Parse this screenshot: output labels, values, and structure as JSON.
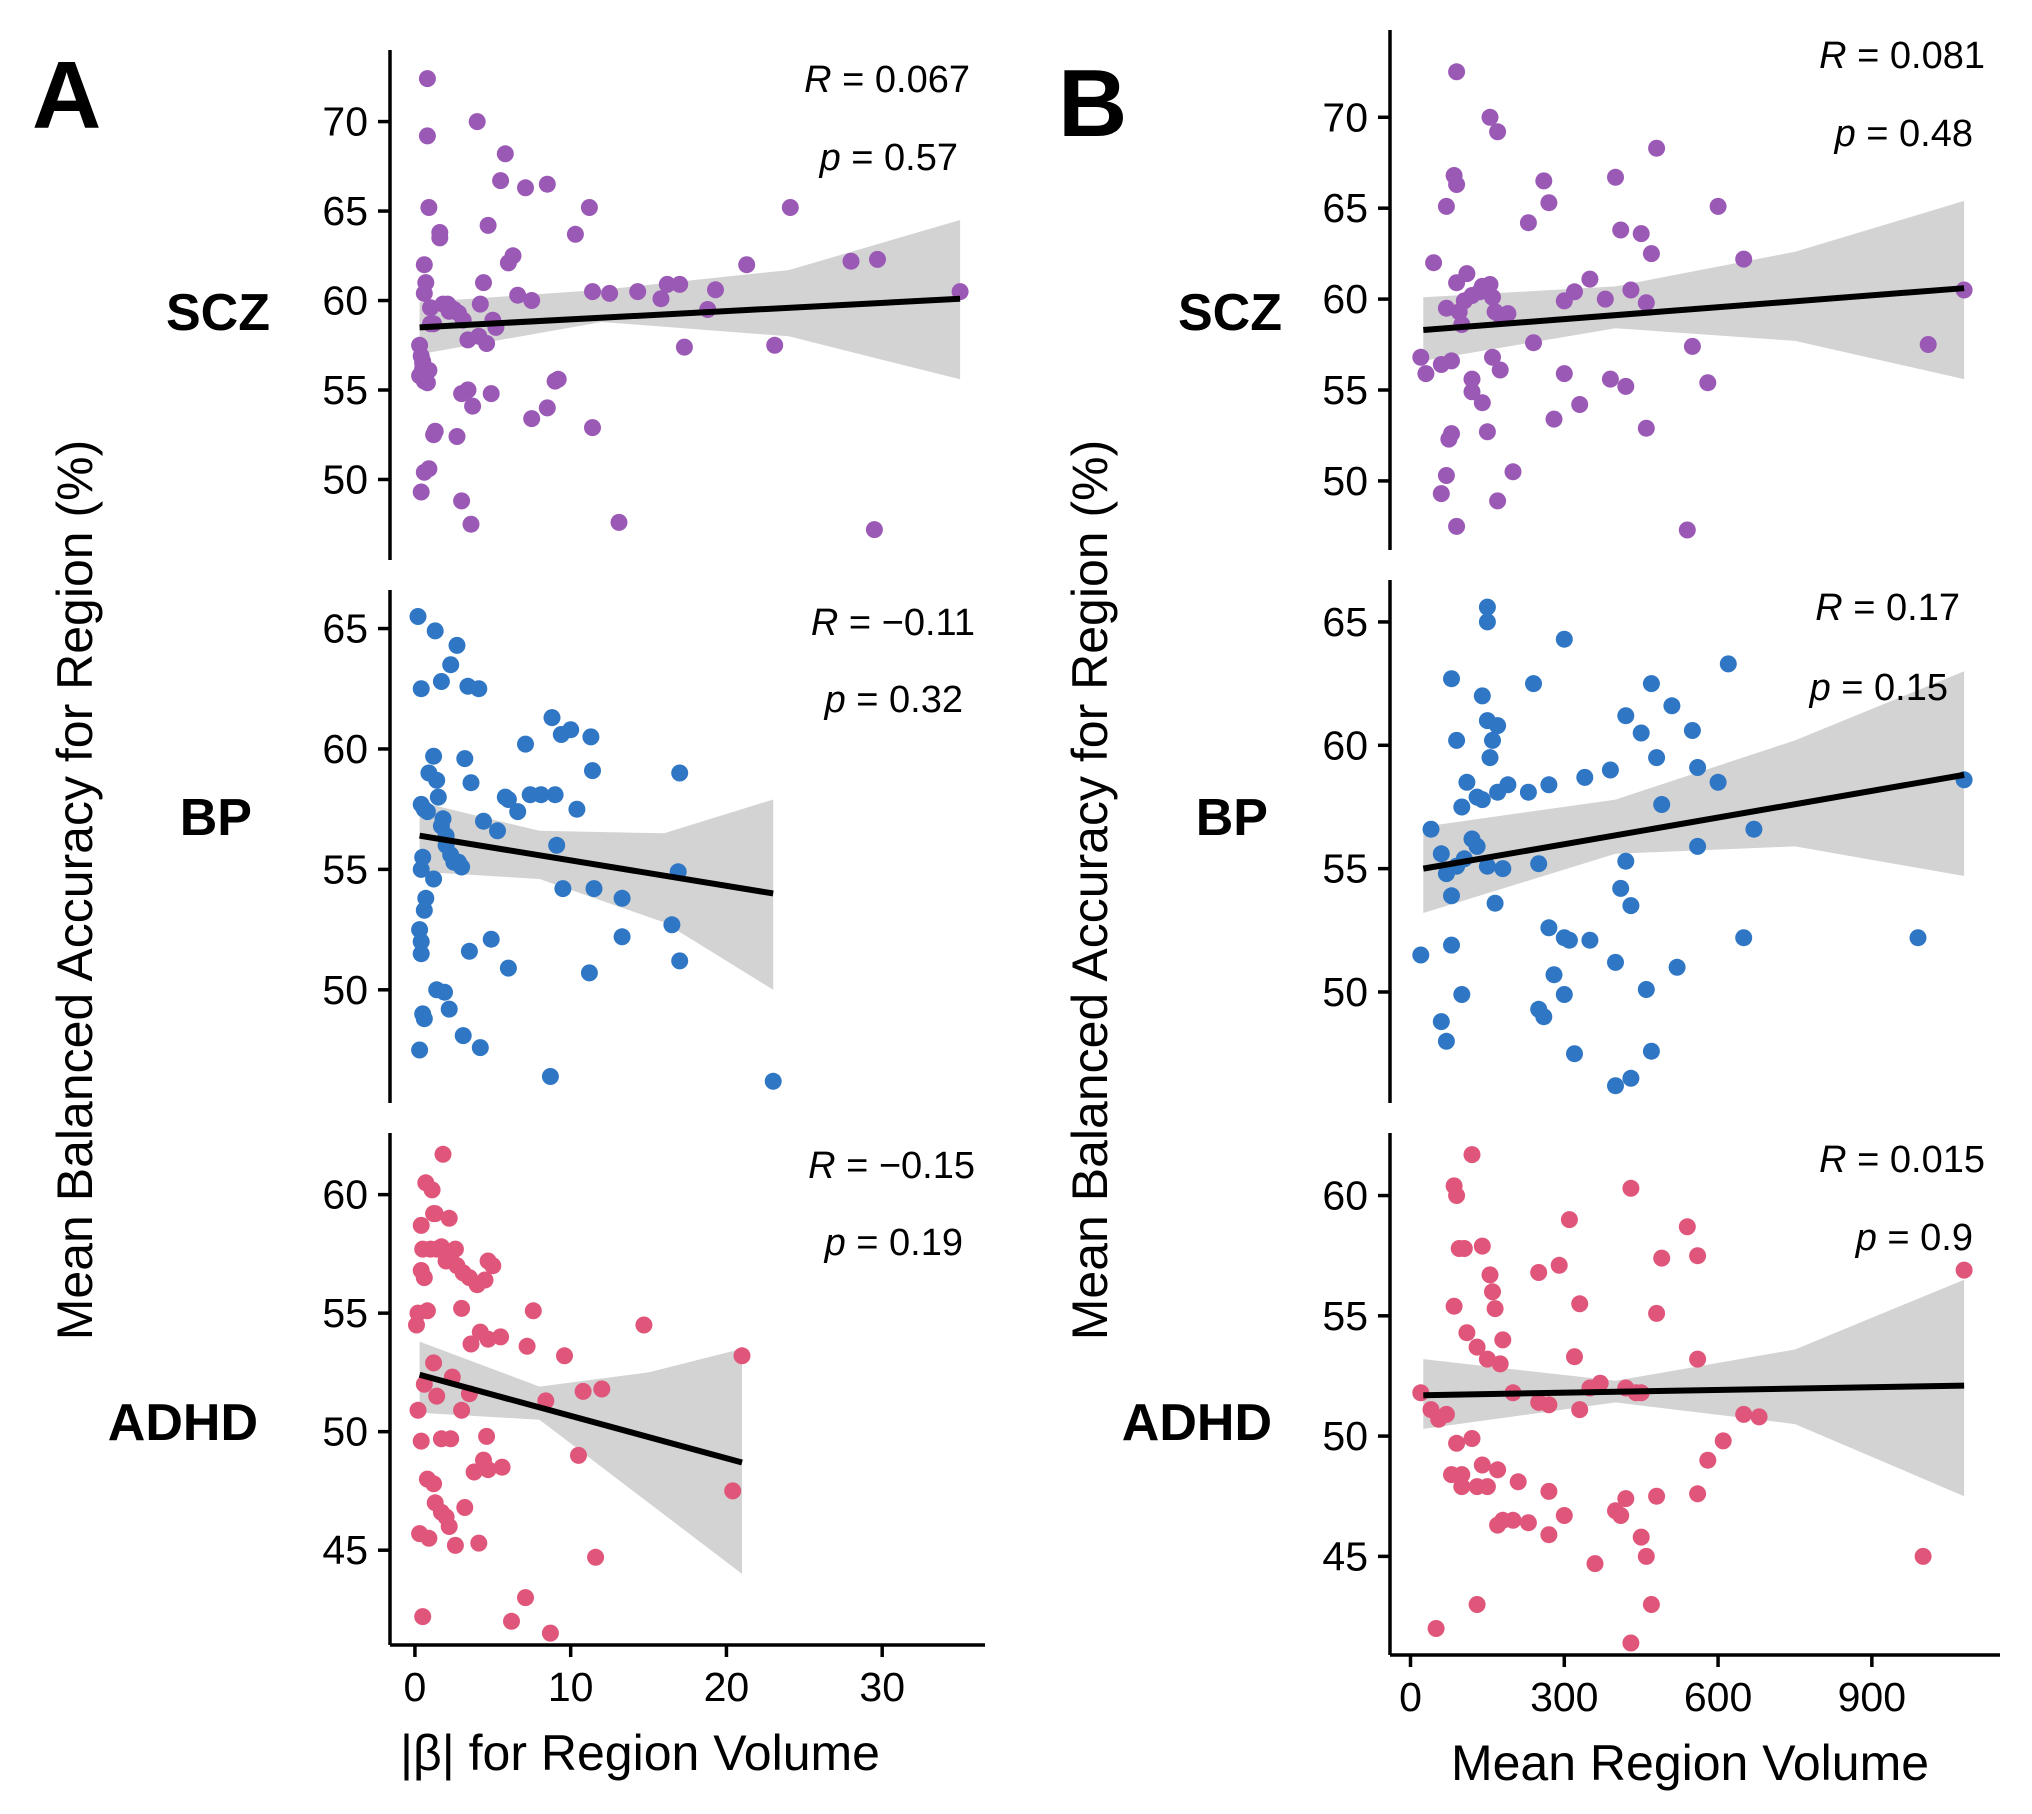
{
  "panels": [
    {
      "letter": "A",
      "ylabel": "Mean Balanced Accuracy for Region (%)",
      "xlabel": "|β| for Region Volume"
    },
    {
      "letter": "B",
      "ylabel": "Mean Balanced Accuracy for Region (%)",
      "xlabel": "Mean Region Volume"
    }
  ],
  "chart_data": [
    {
      "type": "scatter",
      "panel": "A",
      "group": "SCZ",
      "color": "#9b59b6",
      "stat_R": "0.067",
      "stat_p": "0.57",
      "xlim": [
        -1.6,
        36.6
      ],
      "ylim": [
        45.5,
        74
      ],
      "xticks": [
        0,
        10,
        20,
        30
      ],
      "yticks": [
        50,
        55,
        60,
        65,
        70
      ],
      "fit": {
        "x": [
          0.3,
          35
        ],
        "y": [
          58.5,
          60.1
        ]
      },
      "band": {
        "x": [
          0.3,
          12,
          24,
          35
        ],
        "lower": [
          57.0,
          58.8,
          58.0,
          55.6
        ],
        "upper": [
          59.9,
          60.6,
          61.7,
          64.5
        ]
      },
      "x": [
        0.8,
        0.8,
        0.9,
        0.6,
        0.7,
        0.6,
        0.3,
        0.4,
        0.5,
        0.5,
        0.6,
        0.8,
        1.0,
        1.2,
        1.6,
        1.6,
        2.1,
        2.3,
        2.5,
        2.8,
        3.1,
        3.4,
        3.7,
        4.0,
        4.4,
        4.7,
        5.0,
        5.5,
        5.8,
        6.3,
        7.1,
        7.5,
        8.5,
        9.0,
        10.3,
        11.2,
        11.4,
        12.5,
        14.3,
        15.8,
        16.2,
        17.0,
        17.3,
        18.8,
        19.3,
        21.3,
        23.1,
        24.1,
        28.0,
        29.5,
        29.7,
        35.0,
        0.6,
        0.9,
        1.2,
        1.8,
        2.2,
        3.0,
        3.4,
        3.6,
        4.1,
        4.6,
        4.9,
        5.2,
        6.0,
        6.6,
        7.5,
        8.5,
        9.2,
        11.4,
        13.1,
        0.4,
        0.3,
        0.6,
        0.9,
        1.3,
        2.7,
        3.0,
        3.4,
        4.2,
        0.5,
        1.0
      ],
      "y": [
        72.4,
        69.2,
        65.2,
        62.0,
        61.0,
        60.4,
        57.5,
        56.9,
        56.5,
        56.2,
        55.9,
        55.4,
        59.6,
        58.7,
        63.8,
        63.5,
        59.8,
        59.6,
        59.5,
        59.3,
        58.9,
        55.0,
        54.1,
        70.0,
        61.0,
        64.2,
        58.9,
        66.7,
        68.2,
        62.5,
        66.3,
        60.0,
        66.5,
        55.5,
        63.7,
        65.2,
        60.5,
        60.4,
        60.5,
        60.1,
        60.9,
        60.9,
        57.4,
        59.5,
        60.6,
        62.0,
        57.5,
        65.2,
        62.2,
        47.2,
        62.3,
        60.5,
        55.5,
        56.1,
        52.5,
        59.8,
        59.4,
        54.8,
        55.0,
        47.5,
        58.0,
        57.6,
        54.8,
        58.5,
        62.1,
        60.3,
        53.4,
        54.0,
        55.6,
        52.9,
        47.6,
        49.3,
        55.8,
        50.4,
        50.6,
        52.7,
        52.4,
        48.8,
        57.8,
        59.8,
        56.6,
        58.7
      ]
    },
    {
      "type": "scatter",
      "panel": "A",
      "group": "BP",
      "color": "#2f76c4",
      "stat_R": "−0.11",
      "stat_p": "0.32",
      "xlim": [
        -1.6,
        36.6
      ],
      "ylim": [
        45.3,
        66.6
      ],
      "xticks": [
        0,
        10,
        20,
        30
      ],
      "yticks": [
        50,
        55,
        60,
        65
      ],
      "fit": {
        "x": [
          0.3,
          23
        ],
        "y": [
          56.4,
          54.0
        ]
      },
      "band": {
        "x": [
          0.3,
          8,
          16,
          23
        ],
        "lower": [
          54.9,
          54.6,
          52.8,
          50.0
        ],
        "upper": [
          57.8,
          56.6,
          56.5,
          57.9
        ]
      },
      "x": [
        0.2,
        0.4,
        0.4,
        0.5,
        0.4,
        0.4,
        0.5,
        0.3,
        0.6,
        0.6,
        0.9,
        1.2,
        1.4,
        1.5,
        1.8,
        1.7,
        2.0,
        2.0,
        2.3,
        2.5,
        2.8,
        3.0,
        3.2,
        3.6,
        4.4,
        5.3,
        5.8,
        6.0,
        6.6,
        7.1,
        7.4,
        8.1,
        8.8,
        9.0,
        9.4,
        10.0,
        11.3,
        11.4,
        11.5,
        13.3,
        16.9,
        17.0,
        0.3,
        0.6,
        0.7,
        1.2,
        1.4,
        1.9,
        2.2,
        3.1,
        3.5,
        4.2,
        4.9,
        6.0,
        8.7,
        9.1,
        9.5,
        10.4,
        11.2,
        13.3,
        16.5,
        17.0,
        23.0,
        0.4,
        0.8,
        1.3,
        1.7,
        2.3,
        2.7,
        3.4,
        4.1
      ],
      "y": [
        65.5,
        62.5,
        55.0,
        55.5,
        51.5,
        52.0,
        49.0,
        47.5,
        48.8,
        57.5,
        59.0,
        59.7,
        58.7,
        58.0,
        57.1,
        56.8,
        56.4,
        56.0,
        55.6,
        55.3,
        55.3,
        55.1,
        59.6,
        58.6,
        57.0,
        56.6,
        58.0,
        57.9,
        57.4,
        60.2,
        58.1,
        58.1,
        61.3,
        58.1,
        60.6,
        60.8,
        60.5,
        59.1,
        54.2,
        53.8,
        54.9,
        59.0,
        52.5,
        53.3,
        53.8,
        54.6,
        50.0,
        49.9,
        49.2,
        48.1,
        51.6,
        47.6,
        52.1,
        50.9,
        46.4,
        56.0,
        54.2,
        57.5,
        50.7,
        52.2,
        52.7,
        51.2,
        46.2,
        57.7,
        57.4,
        64.9,
        62.8,
        63.5,
        64.3,
        62.6,
        62.5
      ],
      "_": null
    },
    {
      "type": "scatter",
      "panel": "A",
      "group": "ADHD",
      "color": "#e0557a",
      "stat_R": "−0.15",
      "stat_p": "0.19",
      "xlim": [
        -1.6,
        36.6
      ],
      "ylim": [
        41,
        62.6
      ],
      "xticks": [
        0,
        10,
        20,
        30
      ],
      "yticks": [
        45,
        50,
        55,
        60
      ],
      "fit": {
        "x": [
          0.3,
          21
        ],
        "y": [
          52.4,
          48.7
        ]
      },
      "band": {
        "x": [
          0.3,
          8,
          15,
          21
        ],
        "lower": [
          50.8,
          50.5,
          47.0,
          44.0
        ],
        "upper": [
          53.8,
          51.9,
          52.5,
          53.5
        ]
      },
      "x": [
        0.2,
        0.1,
        0.4,
        0.5,
        0.4,
        0.6,
        0.8,
        1.0,
        1.2,
        1.4,
        1.7,
        2.0,
        2.3,
        2.7,
        3.1,
        3.5,
        4.0,
        4.5,
        4.7,
        5.0,
        0.7,
        1.1,
        1.3,
        1.8,
        2.2,
        2.6,
        3.0,
        3.6,
        4.2,
        4.7,
        5.5,
        7.2,
        7.6,
        8.4,
        9.6,
        10.5,
        10.8,
        11.6,
        12.0,
        14.7,
        20.4,
        21.0,
        0.2,
        0.4,
        0.8,
        1.2,
        1.7,
        2.0,
        2.2,
        2.6,
        3.2,
        4.1,
        4.4,
        5.6,
        6.2,
        7.1,
        8.7,
        0.3,
        0.5,
        0.9,
        1.3,
        1.7,
        2.3,
        3.0,
        3.8,
        4.7,
        0.6,
        1.4,
        2.4,
        3.5,
        4.6,
        1.2
      ],
      "y": [
        55.0,
        54.5,
        56.8,
        57.7,
        58.7,
        56.5,
        55.1,
        57.7,
        59.2,
        57.7,
        57.8,
        57.2,
        57.3,
        57.0,
        56.7,
        56.5,
        56.2,
        56.4,
        57.2,
        57.0,
        60.5,
        60.2,
        59.2,
        61.7,
        59.0,
        57.7,
        55.2,
        53.7,
        54.2,
        53.9,
        54.0,
        53.6,
        55.1,
        51.3,
        53.2,
        49.0,
        51.7,
        44.7,
        51.8,
        54.5,
        47.5,
        53.2,
        50.9,
        49.6,
        48.0,
        47.8,
        46.6,
        46.4,
        46.0,
        45.2,
        46.8,
        45.3,
        48.8,
        48.5,
        42.0,
        43.0,
        41.5,
        45.7,
        42.2,
        45.5,
        47.0,
        49.7,
        49.7,
        50.9,
        48.3,
        48.4,
        52.0,
        51.5,
        52.3,
        51.6,
        49.8,
        52.9
      ]
    },
    {
      "type": "scatter",
      "panel": "B",
      "group": "SCZ",
      "color": "#9b59b6",
      "stat_R": "0.081",
      "stat_p": "0.48",
      "xlim": [
        -40,
        1150
      ],
      "ylim": [
        46.2,
        74.8
      ],
      "xticks": [
        0,
        300,
        600,
        900
      ],
      "yticks": [
        50,
        55,
        60,
        65,
        70
      ],
      "fit": {
        "x": [
          25,
          1080
        ],
        "y": [
          58.3,
          60.6
        ]
      },
      "band": {
        "x": [
          25,
          400,
          750,
          1080
        ],
        "lower": [
          56.6,
          58.4,
          57.7,
          55.6
        ],
        "upper": [
          60.1,
          60.7,
          62.6,
          65.4
        ]
      },
      "x": [
        90,
        155,
        170,
        90,
        70,
        45,
        20,
        30,
        70,
        80,
        90,
        95,
        105,
        120,
        135,
        140,
        150,
        155,
        160,
        165,
        175,
        190,
        230,
        240,
        260,
        270,
        300,
        320,
        350,
        380,
        400,
        410,
        430,
        450,
        460,
        470,
        480,
        550,
        600,
        650,
        1080,
        1010,
        60,
        75,
        80,
        100,
        120,
        140,
        150,
        160,
        170,
        200,
        280,
        300,
        330,
        390,
        420,
        460,
        540,
        580,
        90,
        60,
        70,
        85,
        120,
        140,
        175,
        110
      ],
      "y": [
        72.5,
        70.0,
        69.2,
        66.3,
        65.1,
        62.0,
        56.8,
        55.9,
        59.5,
        56.6,
        60.9,
        59.3,
        59.9,
        60.2,
        60.4,
        60.5,
        60.7,
        60.8,
        60.1,
        59.3,
        59.1,
        59.2,
        64.2,
        57.6,
        66.5,
        65.3,
        59.9,
        60.4,
        61.1,
        60.0,
        66.7,
        63.8,
        60.5,
        63.6,
        59.8,
        62.5,
        68.3,
        57.4,
        65.1,
        62.2,
        60.5,
        57.5,
        56.4,
        52.3,
        52.6,
        58.6,
        54.9,
        54.3,
        52.7,
        56.8,
        48.9,
        50.5,
        53.4,
        55.9,
        54.2,
        55.6,
        55.2,
        52.9,
        47.3,
        55.4,
        47.5,
        49.3,
        50.3,
        66.8,
        55.6,
        60.7,
        56.1,
        61.4
      ]
    },
    {
      "type": "scatter",
      "panel": "B",
      "group": "BP",
      "color": "#2f76c4",
      "stat_R": "0.17",
      "stat_p": "0.15",
      "xlim": [
        -40,
        1150
      ],
      "ylim": [
        45.5,
        66.7
      ],
      "xticks": [
        0,
        300,
        600,
        900
      ],
      "yticks": [
        50,
        55,
        60,
        65
      ],
      "fit": {
        "x": [
          25,
          1080
        ],
        "y": [
          55.0,
          58.8
        ]
      },
      "band": {
        "x": [
          25,
          400,
          750,
          1080
        ],
        "lower": [
          53.2,
          55.6,
          55.9,
          54.7
        ],
        "upper": [
          56.7,
          57.8,
          60.2,
          63.0
        ]
      },
      "x": [
        150,
        150,
        140,
        300,
        470,
        620,
        80,
        240,
        150,
        160,
        170,
        155,
        110,
        90,
        100,
        130,
        140,
        170,
        190,
        230,
        270,
        340,
        390,
        420,
        450,
        480,
        510,
        550,
        560,
        600,
        670,
        1080,
        20,
        40,
        60,
        70,
        80,
        90,
        105,
        120,
        130,
        150,
        180,
        250,
        270,
        280,
        300,
        310,
        350,
        400,
        420,
        430,
        460,
        490,
        520,
        560,
        650,
        990,
        60,
        70,
        80,
        100,
        250,
        260,
        300,
        320,
        400,
        430,
        470,
        165,
        410
      ],
      "y": [
        65.6,
        65.0,
        62.0,
        64.3,
        62.5,
        63.3,
        62.7,
        62.5,
        61.0,
        60.2,
        60.8,
        59.5,
        58.5,
        60.2,
        57.5,
        57.9,
        57.8,
        58.1,
        58.4,
        58.1,
        58.4,
        58.7,
        59.0,
        61.2,
        60.5,
        59.5,
        61.6,
        60.6,
        59.1,
        58.5,
        56.6,
        58.6,
        51.5,
        56.6,
        55.6,
        54.8,
        53.9,
        55.1,
        55.4,
        56.2,
        55.9,
        55.1,
        55.0,
        55.2,
        52.6,
        50.7,
        52.2,
        52.1,
        52.1,
        51.2,
        55.3,
        53.5,
        50.1,
        57.6,
        51.0,
        55.9,
        52.2,
        52.2,
        48.8,
        48.0,
        51.9,
        49.9,
        49.3,
        49.0,
        49.9,
        47.5,
        46.2,
        46.5,
        47.6,
        53.6,
        54.2
      ]
    },
    {
      "type": "scatter",
      "panel": "B",
      "group": "ADHD",
      "color": "#e0557a",
      "stat_R": "0.015",
      "stat_p": "0.9",
      "xlim": [
        -40,
        1150
      ],
      "ylim": [
        40.9,
        62.6
      ],
      "xticks": [
        0,
        300,
        600,
        900
      ],
      "yticks": [
        45,
        50,
        55,
        60
      ],
      "fit": {
        "x": [
          25,
          1080
        ],
        "y": [
          51.7,
          52.1
        ]
      },
      "band": {
        "x": [
          25,
          400,
          750,
          1080
        ],
        "lower": [
          50.3,
          51.4,
          50.5,
          47.5
        ],
        "upper": [
          53.2,
          52.3,
          53.6,
          56.5
        ]
      },
      "x": [
        120,
        85,
        90,
        95,
        105,
        140,
        155,
        160,
        165,
        180,
        250,
        290,
        310,
        330,
        370,
        430,
        450,
        480,
        540,
        560,
        1080,
        85,
        110,
        130,
        150,
        175,
        200,
        250,
        270,
        320,
        350,
        420,
        440,
        490,
        560,
        80,
        90,
        100,
        120,
        140,
        170,
        180,
        210,
        270,
        300,
        330,
        420,
        480,
        560,
        580,
        610,
        650,
        680,
        20,
        40,
        55,
        70,
        100,
        130,
        150,
        170,
        200,
        230,
        270,
        360,
        400,
        410,
        450,
        460,
        470,
        1000,
        50,
        130,
        430
      ],
      "y": [
        61.7,
        60.4,
        60.0,
        57.8,
        57.8,
        57.9,
        56.7,
        56.0,
        55.3,
        54.0,
        56.8,
        57.1,
        59.0,
        55.5,
        52.2,
        60.3,
        51.8,
        55.1,
        58.7,
        57.5,
        56.9,
        55.4,
        54.3,
        53.7,
        53.2,
        53.0,
        51.8,
        51.4,
        51.3,
        53.3,
        52.0,
        52.0,
        51.8,
        57.4,
        53.2,
        48.4,
        49.7,
        48.4,
        49.9,
        48.8,
        48.6,
        46.5,
        48.1,
        47.7,
        46.7,
        51.1,
        47.4,
        47.5,
        47.6,
        49.0,
        49.8,
        50.9,
        50.8,
        51.8,
        51.1,
        50.7,
        50.9,
        47.9,
        47.9,
        47.9,
        46.3,
        46.5,
        46.4,
        45.9,
        44.7,
        46.9,
        46.7,
        45.8,
        45.0,
        43.0,
        45.0,
        42.0,
        43.0,
        41.4
      ]
    }
  ]
}
